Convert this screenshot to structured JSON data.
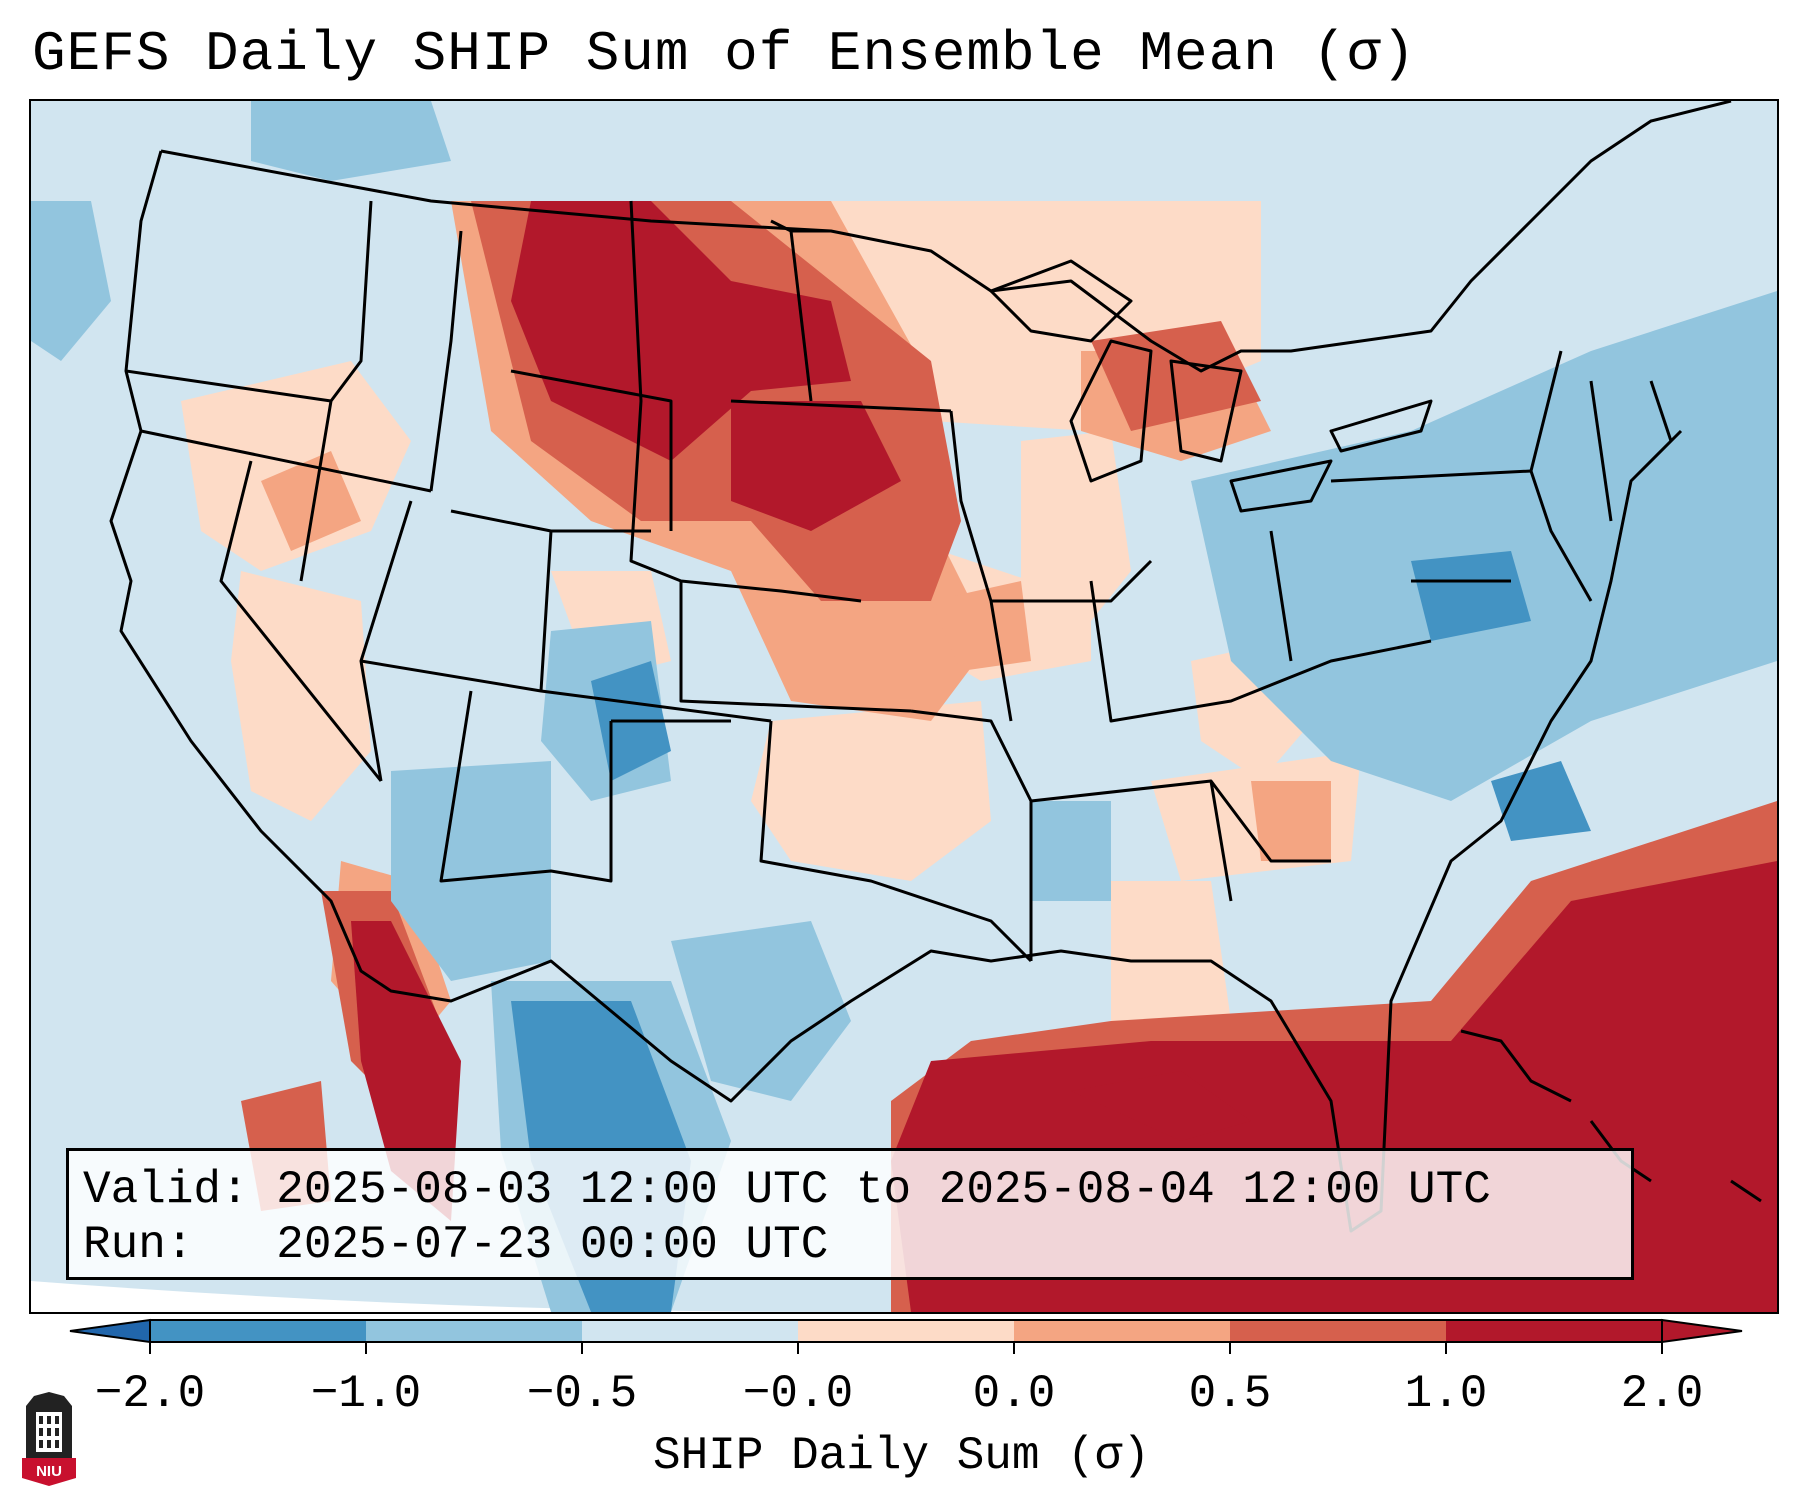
{
  "title": "GEFS Daily SHIP Sum of Ensemble Mean (σ)",
  "info": {
    "valid": "Valid: 2025-08-03 12:00 UTC to 2025-08-04 12:00 UTC",
    "run": "Run:   2025-07-23 00:00 UTC"
  },
  "colorbar": {
    "label": "SHIP Daily Sum (σ)",
    "ticks": [
      "−2.0",
      "−1.0",
      "−0.5",
      "−0.0",
      "0.0",
      "0.5",
      "1.0",
      "2.0"
    ],
    "colors": [
      "#2166ac",
      "#4393c3",
      "#92c5de",
      "#d1e5f0",
      "#fddbc7",
      "#f4a582",
      "#d6604d",
      "#b2182b"
    ],
    "extend": "both"
  },
  "map": {
    "field": "SHIP daily sum standardized anomaly",
    "region": "Contiguous United States",
    "background_color": "#d1e5f0"
  },
  "logo": {
    "text": "NIU"
  }
}
